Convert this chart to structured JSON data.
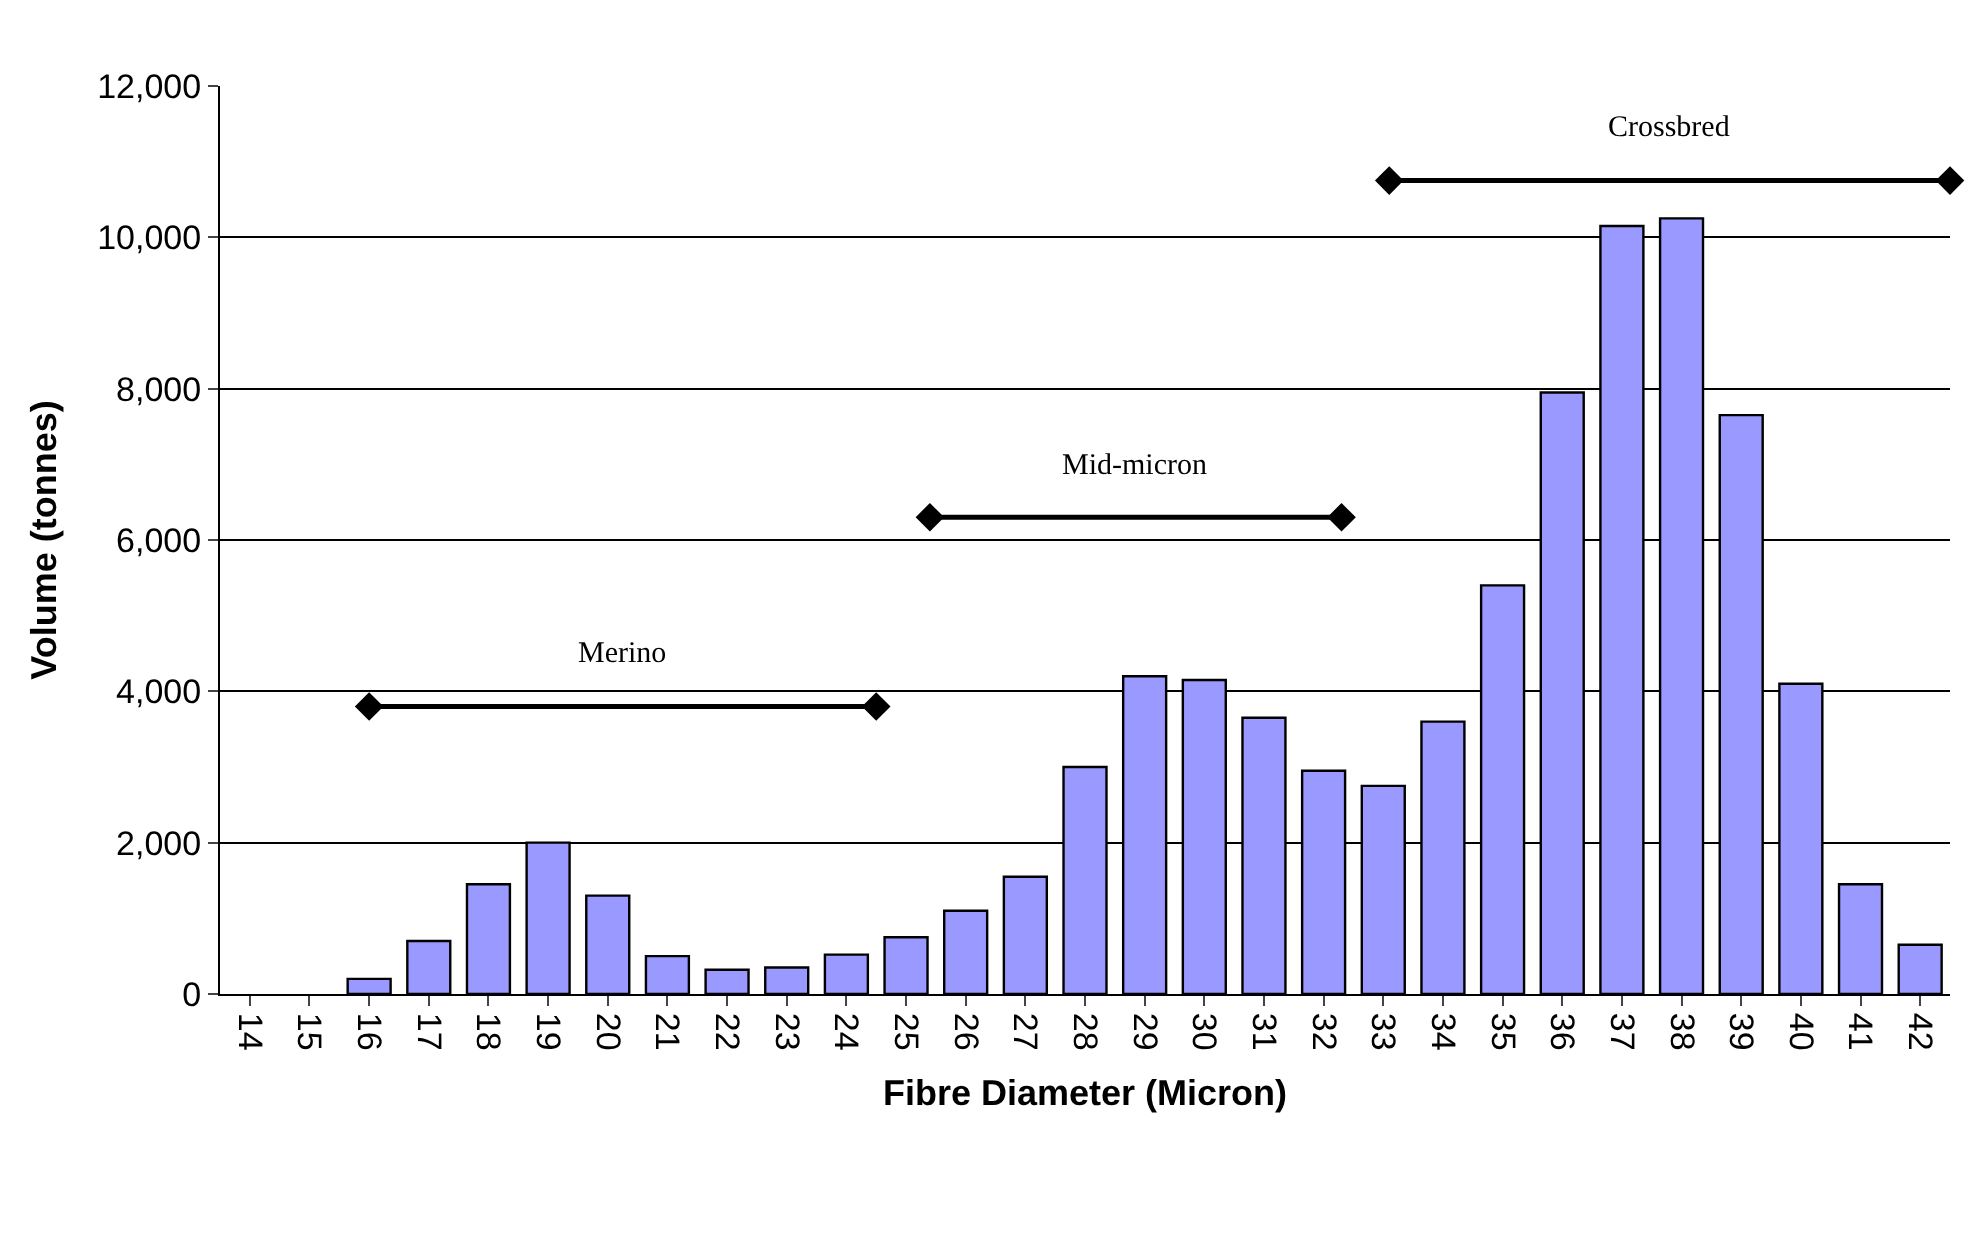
{
  "chart_data": {
    "type": "bar",
    "xlabel": "Fibre Diameter (Micron)",
    "ylabel": "Volume (tonnes)",
    "x": [
      14,
      15,
      16,
      17,
      18,
      19,
      20,
      21,
      22,
      23,
      24,
      25,
      26,
      27,
      28,
      29,
      30,
      31,
      32,
      33,
      34,
      35,
      36,
      37,
      38,
      39,
      40,
      41,
      42
    ],
    "xlim": [
      13.5,
      42.5
    ],
    "xticks": [
      14,
      15,
      16,
      17,
      18,
      19,
      20,
      21,
      22,
      23,
      24,
      25,
      26,
      27,
      28,
      29,
      30,
      31,
      32,
      33,
      34,
      35,
      36,
      37,
      38,
      39,
      40,
      41,
      42
    ],
    "ylim": [
      0,
      12000
    ],
    "yticks": [
      {
        "value": 0,
        "label": "0"
      },
      {
        "value": 2000,
        "label": "2,000"
      },
      {
        "value": 4000,
        "label": "4,000"
      },
      {
        "value": 6000,
        "label": "6,000"
      },
      {
        "value": 8000,
        "label": "8,000"
      },
      {
        "value": 10000,
        "label": "10,000"
      },
      {
        "value": 12000,
        "label": "12,000"
      }
    ],
    "grid": "y",
    "legend": false,
    "series": [
      {
        "color": "#9999ff",
        "values": [
          0,
          0,
          200,
          700,
          1450,
          2000,
          1300,
          500,
          320,
          350,
          520,
          750,
          1100,
          1550,
          3000,
          4200,
          4150,
          3650,
          2950,
          2750,
          3600,
          5400,
          7950,
          10150,
          10250,
          7650,
          4100,
          1450,
          650
        ]
      },
      {
        "type": "line",
        "name": "Merino",
        "color": "#000000",
        "marker": "diamond",
        "x": [
          16,
          24.5
        ],
        "values": [
          3800,
          3800
        ]
      },
      {
        "type": "line",
        "name": "Mid-micron",
        "color": "#000000",
        "marker": "diamond",
        "x": [
          25.4,
          32.3
        ],
        "values": [
          6300,
          6300
        ]
      },
      {
        "type": "line",
        "name": "Crossbred",
        "color": "#000000",
        "marker": "diamond",
        "x": [
          33.1,
          42.5
        ],
        "values": [
          10750,
          10750
        ]
      }
    ]
  }
}
